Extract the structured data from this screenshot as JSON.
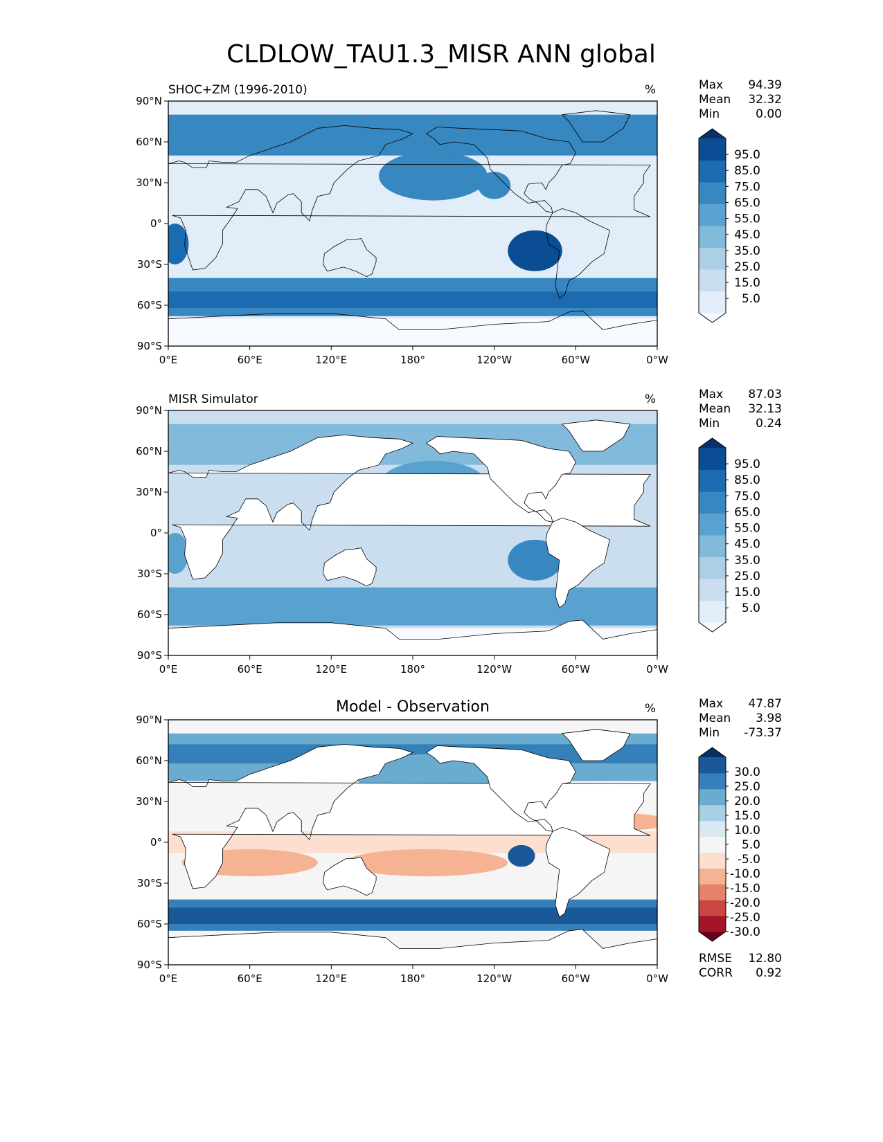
{
  "figure_title": "CLDLOW_TAU1.3_MISR ANN global",
  "chart_data": [
    {
      "type": "heatmap",
      "panel": "model",
      "title_left": "SHOC+ZM (1996-2010)",
      "title_center": "",
      "units": "%",
      "xlabel": "",
      "ylabel": "",
      "xlim": [
        0,
        360
      ],
      "ylim": [
        -90,
        90
      ],
      "x_ticks": [
        "0°E",
        "60°E",
        "120°E",
        "180°",
        "120°W",
        "60°W",
        "0°W"
      ],
      "y_ticks": [
        "90°N",
        "60°N",
        "30°N",
        "0°",
        "30°S",
        "60°S",
        "90°S"
      ],
      "stats": {
        "labels": [
          "Max",
          "Mean",
          "Min"
        ],
        "values": [
          "94.39",
          "32.32",
          "0.00"
        ]
      },
      "colorbar": {
        "ticks": [
          "95.0",
          "85.0",
          "75.0",
          "65.0",
          "55.0",
          "45.0",
          "35.0",
          "25.0",
          "15.0",
          "5.0"
        ],
        "colors": [
          "#f7fbff",
          "#e1edf8",
          "#cadef0",
          "#abcfe5",
          "#82badb",
          "#59a1cf",
          "#3787c0",
          "#1c6aaf",
          "#0b4d94",
          "#08306b"
        ],
        "extend": "both"
      }
    },
    {
      "type": "heatmap",
      "panel": "observation",
      "title_left": "MISR Simulator",
      "title_center": "",
      "units": "%",
      "xlabel": "",
      "ylabel": "",
      "xlim": [
        0,
        360
      ],
      "ylim": [
        -90,
        90
      ],
      "x_ticks": [
        "0°E",
        "60°E",
        "120°E",
        "180°",
        "120°W",
        "60°W",
        "0°W"
      ],
      "y_ticks": [
        "90°N",
        "60°N",
        "30°N",
        "0°",
        "30°S",
        "60°S",
        "90°S"
      ],
      "stats": {
        "labels": [
          "Max",
          "Mean",
          "Min"
        ],
        "values": [
          "87.03",
          "32.13",
          "0.24"
        ]
      },
      "colorbar": {
        "ticks": [
          "95.0",
          "85.0",
          "75.0",
          "65.0",
          "55.0",
          "45.0",
          "35.0",
          "25.0",
          "15.0",
          "5.0"
        ],
        "colors": [
          "#f7fbff",
          "#e1edf8",
          "#cadef0",
          "#abcfe5",
          "#82badb",
          "#59a1cf",
          "#3787c0",
          "#1c6aaf",
          "#0b4d94",
          "#08306b"
        ],
        "extend": "both"
      }
    },
    {
      "type": "heatmap",
      "panel": "difference",
      "title_left": "",
      "title_center": "Model - Observation",
      "units": "%",
      "xlabel": "",
      "ylabel": "",
      "xlim": [
        0,
        360
      ],
      "ylim": [
        -90,
        90
      ],
      "x_ticks": [
        "0°E",
        "60°E",
        "120°E",
        "180°",
        "120°W",
        "60°W",
        "0°W"
      ],
      "y_ticks": [
        "90°N",
        "60°N",
        "30°N",
        "0°",
        "30°S",
        "60°S",
        "90°S"
      ],
      "stats": {
        "labels": [
          "Max",
          "Mean",
          "Min"
        ],
        "values": [
          "47.87",
          "3.98",
          "-73.37"
        ]
      },
      "metrics": {
        "labels": [
          "RMSE",
          "CORR"
        ],
        "values": [
          "12.80",
          "0.92"
        ]
      },
      "colorbar": {
        "ticks": [
          "30.0",
          "25.0",
          "20.0",
          "15.0",
          "10.0",
          "5.0",
          "-5.0",
          "-10.0",
          "-15.0",
          "-20.0",
          "-25.0",
          "-30.0"
        ],
        "colors": [
          "#67001f",
          "#a51429",
          "#c94741",
          "#e58267",
          "#f6b393",
          "#fcdfcf",
          "#f5f5f5",
          "#d8e9f1",
          "#a7d0e4",
          "#6aacd0",
          "#3480b9",
          "#1a5899",
          "#053061"
        ],
        "extend": "both"
      }
    }
  ]
}
